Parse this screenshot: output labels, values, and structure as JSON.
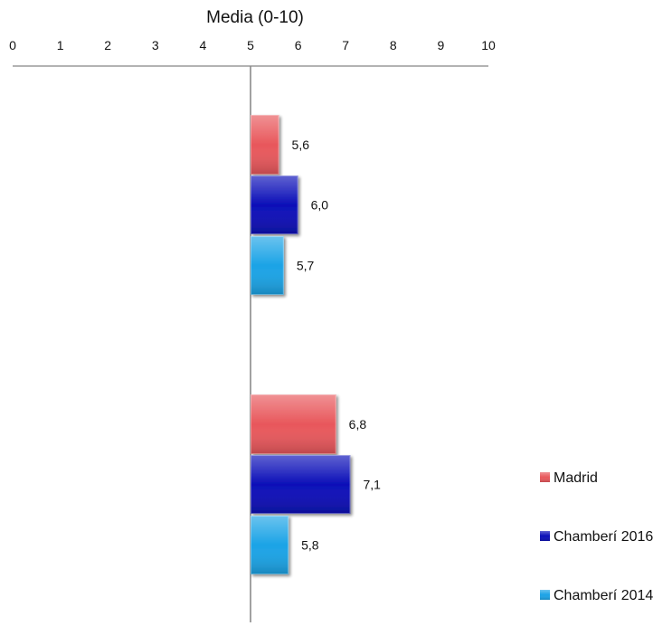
{
  "chart_data": {
    "type": "bar",
    "orientation": "horizontal",
    "xlabel": "Media (0-10)",
    "xlim": [
      0,
      10
    ],
    "ticks": [
      "0",
      "1",
      "2",
      "3",
      "4",
      "5",
      "6",
      "7",
      "8",
      "9",
      "10"
    ],
    "axis_origin": 5,
    "categories": [
      "",
      ""
    ],
    "series": [
      {
        "name": "Madrid",
        "color": "#e8575b",
        "values": [
          5.6,
          6.8
        ],
        "labels": [
          "5,6",
          "6,8"
        ]
      },
      {
        "name": "Chamberí 2016",
        "color": "#0b0fb8",
        "values": [
          6.0,
          7.1
        ],
        "labels": [
          "6,0",
          "7,1"
        ]
      },
      {
        "name": "Chamberí 2014",
        "color": "#1ba3e6",
        "values": [
          5.7,
          5.8
        ],
        "labels": [
          "5,7",
          "5,8"
        ]
      }
    ],
    "legend": {
      "position": "bottom-right",
      "entries": [
        "Madrid",
        "Chamberí 2016",
        "Chamberí 2014"
      ]
    },
    "grid": false
  }
}
